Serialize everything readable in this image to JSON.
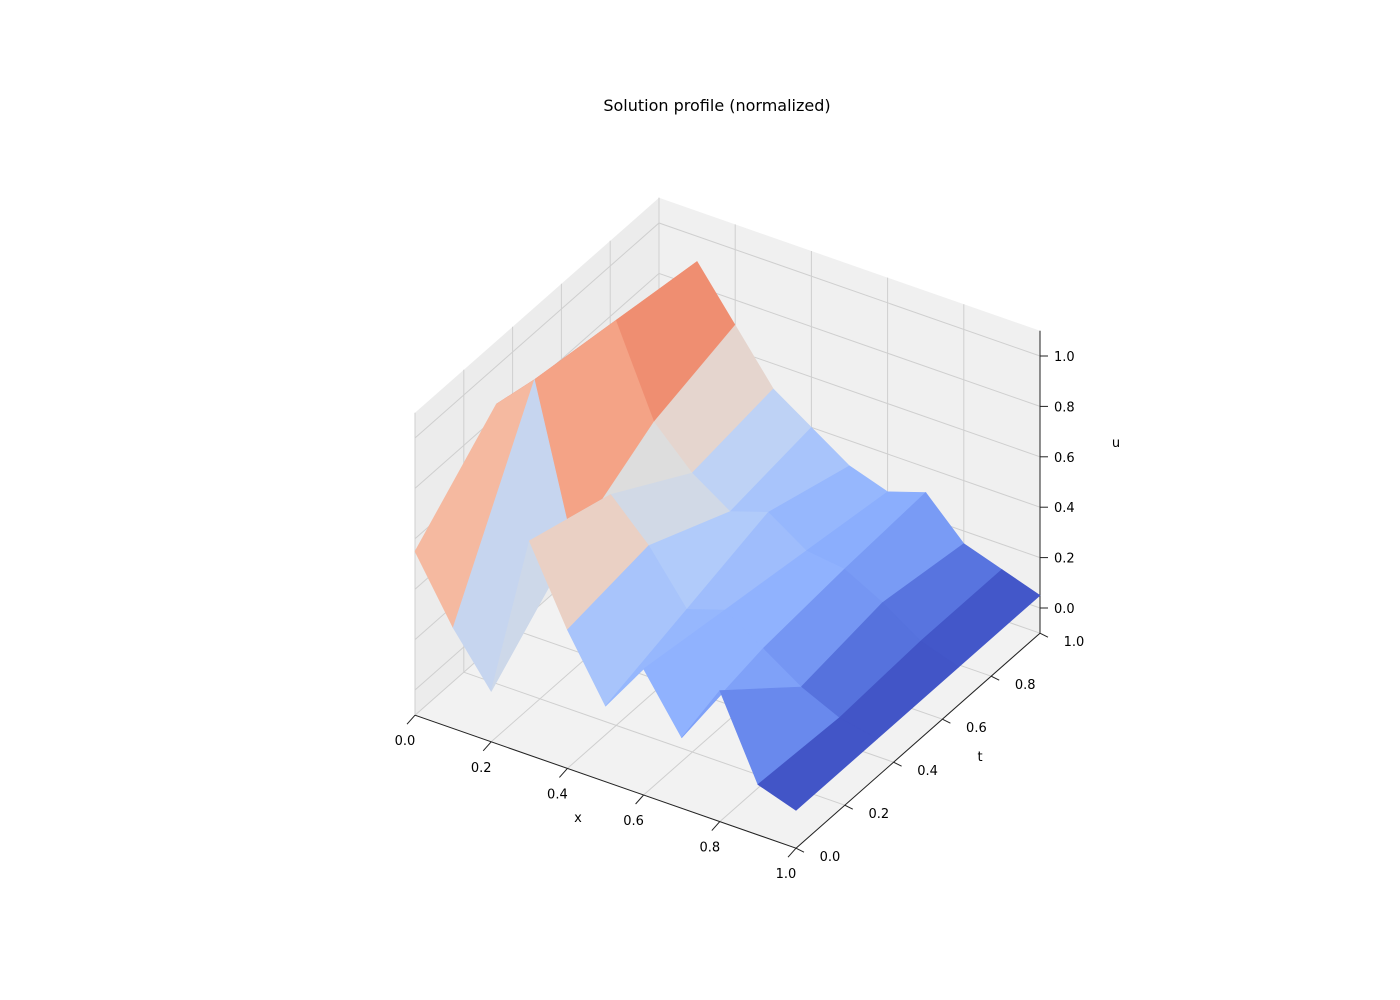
{
  "chart_data": {
    "type": "surface",
    "title": "Solution profile (normalized)",
    "xlabel": "x",
    "ylabel": "t",
    "zlabel": "u",
    "xlim": [
      0,
      1
    ],
    "ylim": [
      0,
      1
    ],
    "zlim": [
      -0.1,
      1.1
    ],
    "xticks": [
      "0.0",
      "0.2",
      "0.4",
      "0.6",
      "0.8",
      "1.0"
    ],
    "yticks": [
      "0.0",
      "0.2",
      "0.4",
      "0.6",
      "0.8",
      "1.0"
    ],
    "zticks": [
      "0.0",
      "0.2",
      "0.4",
      "0.6",
      "0.8",
      "1.0"
    ],
    "grid": true,
    "colormap": "coolwarm",
    "x": [
      0.0,
      0.1,
      0.2,
      0.3,
      0.4,
      0.5,
      0.6,
      0.7,
      0.8,
      0.9,
      1.0
    ],
    "t": [
      0.0,
      0.333,
      0.667,
      1.0
    ],
    "u": [
      [
        0.55,
        0.3,
        0.1,
        0.75,
        0.45,
        0.2,
        0.4,
        0.18,
        0.42,
        0.1,
        0.05
      ],
      [
        0.85,
        1.0,
        0.4,
        0.65,
        0.5,
        0.3,
        0.35,
        0.25,
        0.15,
        0.08,
        0.05
      ],
      [
        0.7,
        0.95,
        0.6,
        0.45,
        0.35,
        0.4,
        0.3,
        0.28,
        0.2,
        0.1,
        0.05
      ],
      [
        0.55,
        0.9,
        0.7,
        0.5,
        0.4,
        0.3,
        0.25,
        0.3,
        0.15,
        0.1,
        0.05
      ]
    ]
  }
}
